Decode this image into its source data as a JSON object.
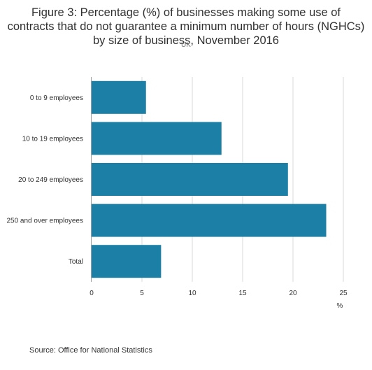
{
  "title": "Figure 3: Percentage (%) of businesses making some use of contracts that do not guarantee a minimum number of hours (NGHCs) by size of business, November 2016",
  "subtitle": "UK",
  "source": "Source: Office for National Statistics",
  "colors": {
    "bar": "#1b7fa6",
    "grid": "#d9d9d9",
    "axis": "#9e9e9e"
  },
  "chart_data": {
    "type": "bar",
    "orientation": "horizontal",
    "categories": [
      "0 to 9 employees",
      "10 to 19 employees",
      "20 to 249 employees",
      "250 and over employees",
      "Total"
    ],
    "values": [
      5.4,
      12.9,
      19.5,
      23.3,
      6.9
    ],
    "xlim": [
      0,
      25
    ],
    "xticks": [
      0,
      5,
      10,
      15,
      20,
      25
    ],
    "xunit": "%",
    "grid": true
  }
}
